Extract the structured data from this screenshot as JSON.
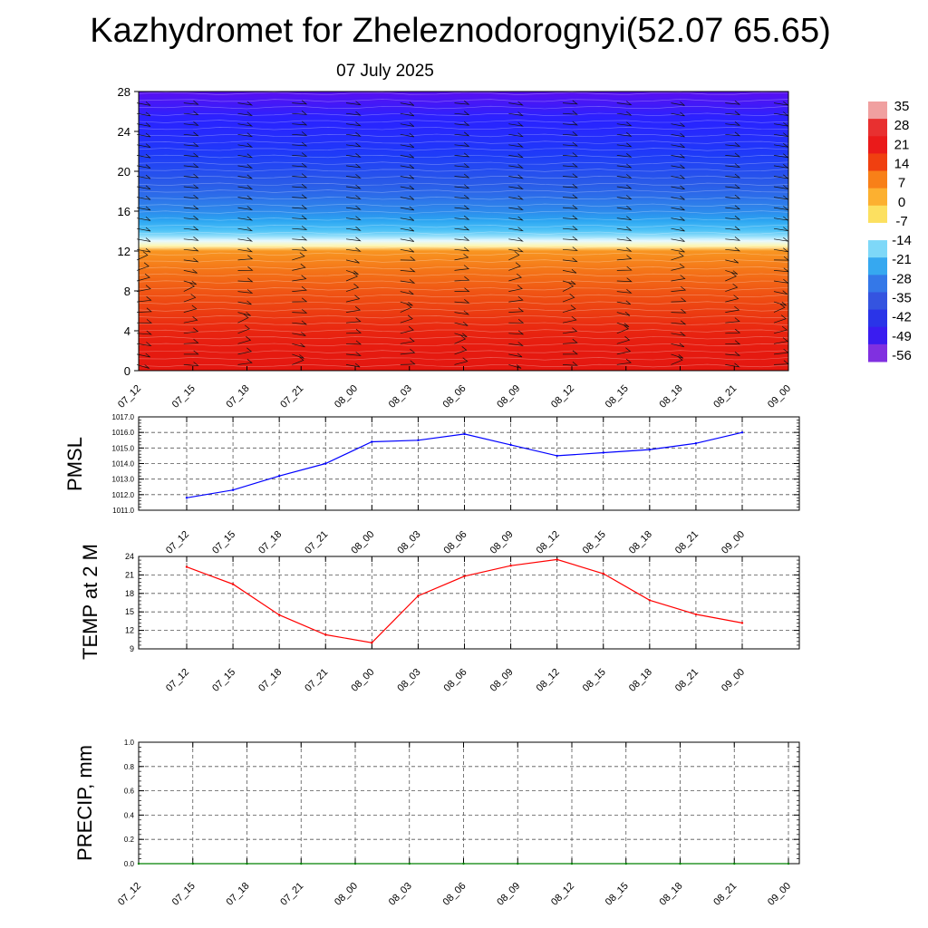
{
  "header": {
    "title": "Kazhydromet for Zheleznodorognyi(52.07 65.65)",
    "subtitle": "07 July 2025"
  },
  "time_labels": [
    "07_12",
    "07_15",
    "07_18",
    "07_21",
    "08_00",
    "08_03",
    "08_06",
    "08_09",
    "08_12",
    "08_15",
    "08_18",
    "08_21",
    "09_00"
  ],
  "chart_data": [
    {
      "type": "heatmap",
      "name": "cross-section",
      "x": [
        "07_12",
        "07_15",
        "07_18",
        "07_21",
        "08_00",
        "08_03",
        "08_06",
        "08_09",
        "08_12",
        "08_15",
        "08_18",
        "08_21",
        "09_00"
      ],
      "yticks": [
        0,
        4,
        8,
        12,
        16,
        20,
        24,
        28
      ],
      "ylim": [
        0,
        28
      ],
      "colorbar": {
        "labels": [
          "35",
          "28",
          "21",
          "14",
          "7",
          "0",
          "-7",
          "-14",
          "-21",
          "-28",
          "-35",
          "-42",
          "-49",
          "-56"
        ],
        "colors": [
          "#f0a0a0",
          "#e83030",
          "#ea1a1a",
          "#f04010",
          "#f88018",
          "#fcb030",
          "#fce060",
          "#ffffff",
          "#7ed8f8",
          "#36a8f0",
          "#3478e8",
          "#3454e0",
          "#2a34e8",
          "#3a1cf0",
          "#8030e0"
        ]
      },
      "temperature_profile": [
        {
          "level": 0,
          "t": 32
        },
        {
          "level": 2,
          "t": 30
        },
        {
          "level": 4,
          "t": 27
        },
        {
          "level": 6,
          "t": 23
        },
        {
          "level": 8,
          "t": 19
        },
        {
          "level": 10,
          "t": 14
        },
        {
          "level": 12,
          "t": 9
        },
        {
          "level": 12.5,
          "t": -10
        },
        {
          "level": 14,
          "t": -22
        },
        {
          "level": 16,
          "t": -33
        },
        {
          "level": 18,
          "t": -40
        },
        {
          "level": 20,
          "t": -45
        },
        {
          "level": 22,
          "t": -50
        },
        {
          "level": 24,
          "t": -54
        },
        {
          "level": 26,
          "t": -57
        },
        {
          "level": 28,
          "t": -60
        }
      ]
    },
    {
      "type": "line",
      "name": "PMSL",
      "ylabel": "PMSL",
      "x": [
        "07_12",
        "07_15",
        "07_18",
        "07_21",
        "08_00",
        "08_03",
        "08_06",
        "08_09",
        "08_12",
        "08_15",
        "08_18",
        "08_21",
        "09_00"
      ],
      "values": [
        1011.8,
        1012.3,
        1013.2,
        1014.0,
        1015.4,
        1015.5,
        1015.9,
        1015.2,
        1014.5,
        1014.7,
        1014.9,
        1015.3,
        1016.0
      ],
      "ylim": [
        1011.0,
        1017.0
      ],
      "yticks": [
        "1011.0",
        "1012.0",
        "1013.0",
        "1014.0",
        "1015.0",
        "1016.0",
        "1017.0"
      ],
      "color": "#0000ff"
    },
    {
      "type": "line",
      "name": "TEMP",
      "ylabel": "TEMP at 2 M",
      "x": [
        "07_12",
        "07_15",
        "07_18",
        "07_21",
        "08_00",
        "08_03",
        "08_06",
        "08_09",
        "08_12",
        "08_15",
        "08_18",
        "08_21",
        "09_00"
      ],
      "values": [
        22.3,
        19.5,
        14.5,
        11.3,
        10.0,
        17.6,
        20.8,
        22.5,
        23.5,
        21.2,
        16.9,
        14.6,
        13.2
      ],
      "ylim": [
        9,
        24
      ],
      "yticks": [
        "9",
        "12",
        "15",
        "18",
        "21",
        "24"
      ],
      "color": "#ff0000"
    },
    {
      "type": "line",
      "name": "PRECIP",
      "ylabel": "PRECIP, mm",
      "x": [
        "07_12",
        "07_15",
        "07_18",
        "07_21",
        "08_00",
        "08_03",
        "08_06",
        "08_09",
        "08_12",
        "08_15",
        "08_18",
        "08_21",
        "09_00"
      ],
      "values": [
        0,
        0,
        0,
        0,
        0,
        0,
        0,
        0,
        0,
        0,
        0,
        0,
        0
      ],
      "ylim": [
        0,
        1
      ],
      "yticks": [
        "0.0",
        "0.2",
        "0.4",
        "0.6",
        "0.8",
        "1.0"
      ],
      "color": "#008000"
    }
  ]
}
